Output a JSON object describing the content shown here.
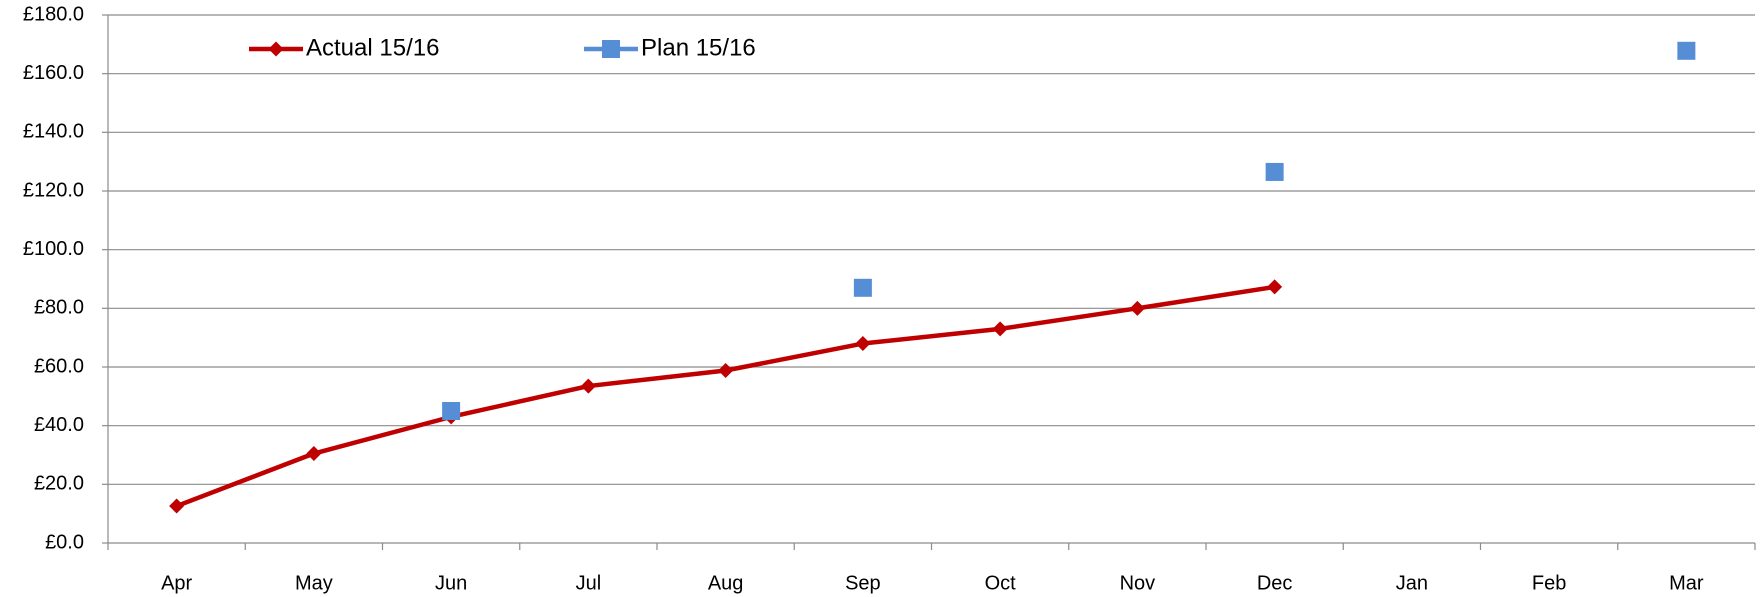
{
  "chart_data": {
    "type": "line",
    "categories": [
      "Apr",
      "May",
      "Jun",
      "Jul",
      "Aug",
      "Sep",
      "Oct",
      "Nov",
      "Dec",
      "Jan",
      "Feb",
      "Mar"
    ],
    "series": [
      {
        "name": "Actual 15/16",
        "color": "#c00000",
        "marker": "diamond",
        "line": true,
        "values": [
          12.6,
          30.5,
          43,
          53.5,
          58.8,
          68,
          73,
          80,
          87.3,
          null,
          null,
          null
        ]
      },
      {
        "name": "Plan 15/16",
        "color": "#558ed5",
        "marker": "square",
        "line": false,
        "values": [
          null,
          null,
          45,
          null,
          null,
          87,
          null,
          null,
          126.5,
          null,
          null,
          167.8
        ]
      }
    ],
    "ylim": [
      0,
      180
    ],
    "yticks": [
      {
        "value": 0,
        "label": "£0.0"
      },
      {
        "value": 20,
        "label": "£20.0"
      },
      {
        "value": 40,
        "label": "£40.0"
      },
      {
        "value": 60,
        "label": "£60.0"
      },
      {
        "value": 80,
        "label": "£80.0"
      },
      {
        "value": 100,
        "label": "£100.0"
      },
      {
        "value": 120,
        "label": "£120.0"
      },
      {
        "value": 140,
        "label": "£140.0"
      },
      {
        "value": 160,
        "label": "£160.0"
      },
      {
        "value": 180,
        "label": "£180.0"
      }
    ],
    "grid": true,
    "legend": "top"
  }
}
